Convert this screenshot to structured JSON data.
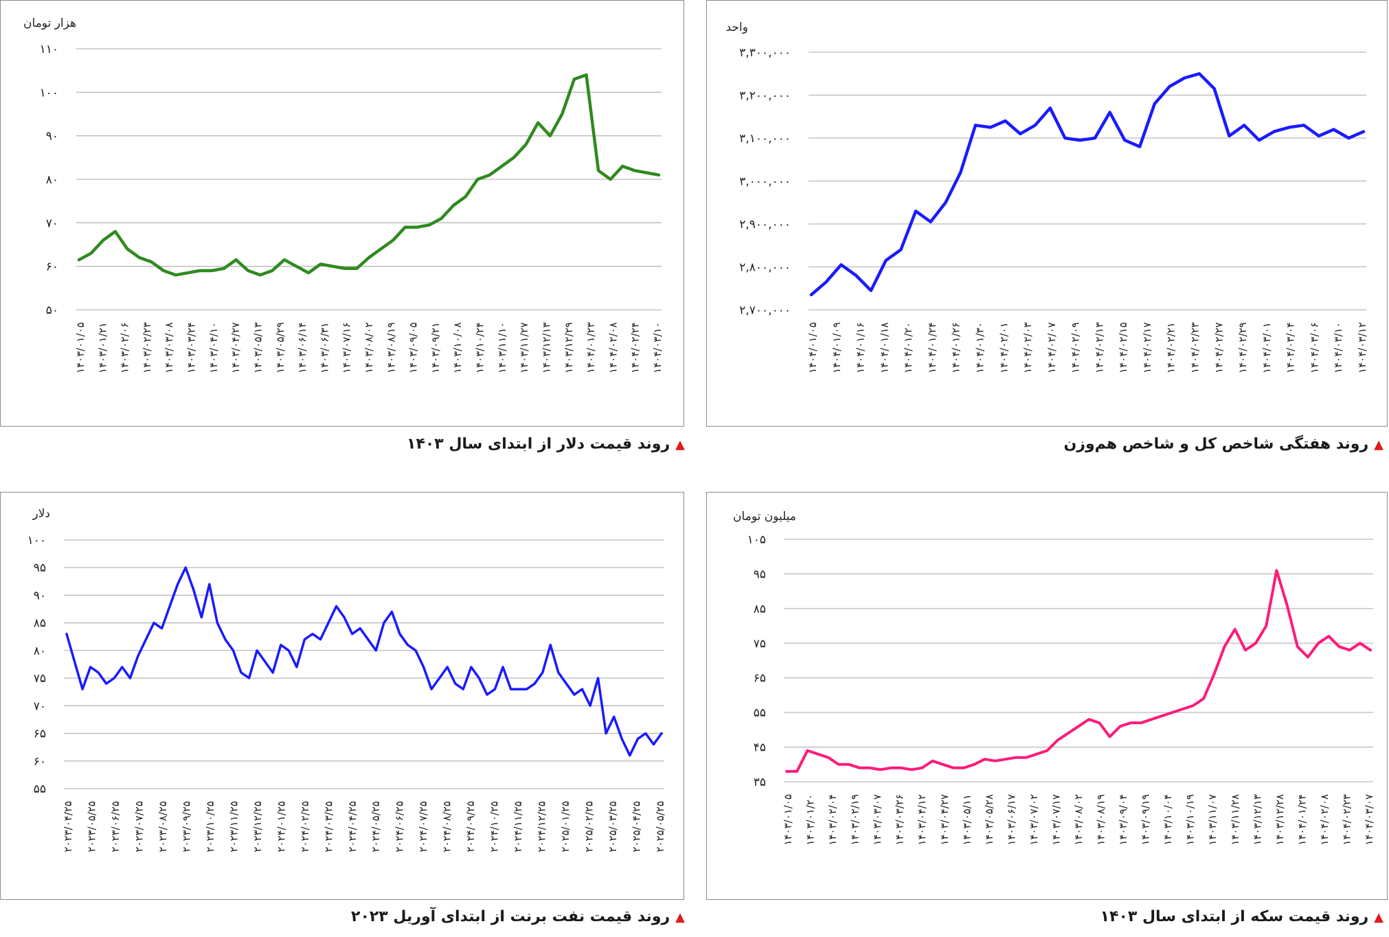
{
  "panels": {
    "index": {
      "caption": "روند هفتگی شاخص کل و شاخص هم‌وزن",
      "chart_data": {
        "type": "line",
        "ylabel": "واحد",
        "ylim": [
          2700000,
          3300000
        ],
        "yticks": [
          2700000,
          2800000,
          2900000,
          3000000,
          3100000,
          3200000,
          3300000
        ],
        "ytick_labels": [
          "۲,۷۰۰,۰۰۰",
          "۲,۸۰۰,۰۰۰",
          "۲,۹۰۰,۰۰۰",
          "۳,۰۰۰,۰۰۰",
          "۳,۱۰۰,۰۰۰",
          "۳,۲۰۰,۰۰۰",
          "۳,۳۰۰,۰۰۰"
        ],
        "x_tick_labels": [
          "۱۴۰۴/۰۱/۰۵",
          "۱۴۰۴/۰۱/۰۹",
          "۱۴۰۴/۰۱/۱۶",
          "۱۴۰۴/۰۱/۱۸",
          "۱۴۰۴/۰۱/۲۰",
          "۱۴۰۴/۰۱/۲۴",
          "۱۴۰۴/۰۱/۲۶",
          "۱۴۰۴/۰۱/۳۰",
          "۱۴۰۴/۰۲/۰۱",
          "۱۴۰۴/۰۲/۰۳",
          "۱۴۰۴/۰۲/۰۷",
          "۱۴۰۴/۰۲/۰۹",
          "۱۴۰۴/۰۲/۱۳",
          "۱۴۰۴/۰۲/۱۵",
          "۱۴۰۴/۰۲/۱۷",
          "۱۴۰۴/۰۲/۲۱",
          "۱۴۰۴/۰۲/۲۳",
          "۱۴۰۴/۰۲/۲۷",
          "۱۴۰۴/۰۲/۲۹",
          "۱۴۰۴/۰۳/۰۱",
          "۱۴۰۴/۰۳/۰۴",
          "۱۴۰۴/۰۳/۰۶",
          "۱۴۰۴/۰۳/۱۰",
          "۱۴۰۴/۰۳/۱۲"
        ],
        "series": [
          {
            "color": "#1a1aff",
            "values": [
              2735000,
              2765000,
              2805000,
              2780000,
              2745000,
              2815000,
              2840000,
              2930000,
              2905000,
              2950000,
              3020000,
              3130000,
              3125000,
              3140000,
              3110000,
              3130000,
              3170000,
              3100000,
              3095000,
              3100000,
              3160000,
              3095000,
              3080000,
              3180000,
              3220000,
              3240000,
              3250000,
              3215000,
              3105000,
              3130000,
              3095000,
              3115000,
              3125000,
              3130000,
              3105000,
              3120000,
              3100000,
              3115000
            ]
          }
        ]
      }
    },
    "dollar": {
      "caption": "روند قیمت دلار از ابتدای سال ۱۴۰۳",
      "chart_data": {
        "type": "line",
        "ylabel": "هزار تومان",
        "ylim": [
          50,
          110
        ],
        "yticks": [
          50,
          60,
          70,
          80,
          90,
          100,
          110
        ],
        "ytick_labels": [
          "۵۰",
          "۶۰",
          "۷۰",
          "۸۰",
          "۹۰",
          "۱۰۰",
          "۱۱۰"
        ],
        "x_tick_labels": [
          "۱۴۰۳/۰۱/۰۵",
          "۱۴۰۳/۰۱/۲۱",
          "۱۴۰۳/۰۲/۰۶",
          "۱۴۰۳/۰۲/۲۳",
          "۱۴۰۳/۰۳/۰۸",
          "۱۴۰۳/۰۳/۲۴",
          "۱۴۰۳/۰۴/۱۰",
          "۱۴۰۳/۰۴/۲۷",
          "۱۴۰۳/۰۵/۱۳",
          "۱۴۰۳/۰۵/۲۹",
          "۱۴۰۳/۰۶/۱۴",
          "۱۴۰۳/۰۶/۳۱",
          "۱۴۰۳/۰۷/۱۶",
          "۱۴۰۳/۰۸/۰۲",
          "۱۴۰۳/۰۸/۱۹",
          "۱۴۰۳/۰۹/۰۵",
          "۱۴۰۳/۰۹/۲۱",
          "۱۴۰۳/۱۰/۰۸",
          "۱۴۰۳/۱۰/۲۴",
          "۱۴۰۳/۱۱/۱۰",
          "۱۴۰۳/۱۱/۲۷",
          "۱۴۰۳/۱۲/۱۳",
          "۱۴۰۳/۱۲/۲۹",
          "۱۴۰۴/۰۱/۲۳",
          "۱۴۰۴/۰۲/۰۸",
          "۱۴۰۴/۰۲/۲۴",
          "۱۴۰۴/۰۳/۱۰"
        ],
        "series": [
          {
            "color": "#2e8a1e",
            "values": [
              61.5,
              63,
              66,
              68,
              64,
              62,
              61,
              59,
              58,
              58.5,
              59,
              59,
              59.5,
              61.5,
              59,
              58,
              59,
              61.5,
              60,
              58.5,
              60.5,
              60,
              59.5,
              59.5,
              62,
              64,
              66,
              69,
              69,
              69.5,
              71,
              74,
              76,
              80,
              81,
              83,
              85,
              88,
              93,
              90,
              95,
              103,
              104,
              82,
              80,
              83,
              82,
              81.5,
              81
            ]
          }
        ]
      }
    },
    "coin": {
      "caption": "روند قیمت سکه از ابتدای سال ۱۴۰۳",
      "chart_data": {
        "type": "line",
        "ylabel": "میلیون تومان",
        "ylim": [
          35,
          105
        ],
        "yticks": [
          35,
          45,
          55,
          65,
          75,
          85,
          95,
          105
        ],
        "ytick_labels": [
          "۳۵",
          "۴۵",
          "۵۵",
          "۶۵",
          "۷۵",
          "۸۵",
          "۹۵",
          "۱۰۵"
        ],
        "x_tick_labels": [
          "۱۴۰۳/۰۱/۰۵",
          "۱۴۰۳/۰۱/۲۰",
          "۱۴۰۳/۰۲/۰۴",
          "۱۴۰۳/۰۲/۱۹",
          "۱۴۰۳/۰۳/۰۷",
          "۱۴۰۳/۰۳/۲۶",
          "۱۴۰۳/۰۴/۱۲",
          "۱۴۰۳/۰۴/۲۷",
          "۱۴۰۳/۰۵/۱۱",
          "۱۴۰۳/۰۵/۲۸",
          "۱۴۰۳/۰۶/۱۷",
          "۱۴۰۳/۰۷/۰۲",
          "۱۴۰۳/۰۷/۱۷",
          "۱۴۰۳/۰۸/۰۲",
          "۱۴۰۳/۰۸/۱۹",
          "۱۴۰۳/۰۹/۰۴",
          "۱۴۰۳/۰۹/۱۹",
          "۱۴۰۳/۱۰/۰۴",
          "۱۴۰۳/۱۰/۱۹",
          "۱۴۰۳/۱۱/۰۷",
          "۱۴۰۳/۱۱/۲۸",
          "۱۴۰۳/۱۲/۱۳",
          "۱۴۰۳/۱۲/۲۸",
          "۱۴۰۴/۰۱/۲۴",
          "۱۴۰۴/۰۲/۰۸",
          "۱۴۰۴/۰۲/۲۳",
          "۱۴۰۴/۰۳/۰۷"
        ],
        "series": [
          {
            "color": "#ff1a7a",
            "values": [
              38,
              38,
              44,
              43,
              42,
              40,
              40,
              39,
              39,
              38.5,
              39,
              39,
              38.5,
              39,
              41,
              40,
              39,
              39,
              40,
              41.5,
              41,
              41.5,
              42,
              42,
              43,
              44,
              47,
              49,
              51,
              53,
              52,
              48,
              51,
              52,
              52,
              53,
              54,
              55,
              56,
              57,
              59,
              66,
              74,
              79,
              73,
              75,
              80,
              96,
              86,
              74,
              71,
              75,
              77,
              74,
              73,
              75,
              73
            ]
          }
        ]
      }
    },
    "brent": {
      "caption": "روند قیمت نفت برنت از ابتدای آوریل ۲۰۲۳",
      "chart_data": {
        "type": "line",
        "ylabel": "دلار",
        "ylim": [
          55,
          100
        ],
        "yticks": [
          55,
          60,
          65,
          70,
          75,
          80,
          85,
          90,
          95,
          100
        ],
        "ytick_labels": [
          "۵۵",
          "۶۰",
          "۶۵",
          "۷۰",
          "۷۵",
          "۸۰",
          "۸۵",
          "۹۰",
          "۹۵",
          "۱۰۰"
        ],
        "x_tick_labels": [
          "۲۰۲۳/۰۴/۲۵",
          "۲۰۲۳/۰۵/۲۵",
          "۲۰۲۳/۰۶/۲۵",
          "۲۰۲۳/۰۷/۲۵",
          "۲۰۲۳/۰۸/۲۵",
          "۲۰۲۳/۰۹/۲۵",
          "۲۰۲۳/۱۰/۲۵",
          "۲۰۲۳/۱۱/۲۵",
          "۲۰۲۳/۱۲/۲۵",
          "۲۰۲۴/۰۱/۲۵",
          "۲۰۲۴/۰۲/۲۵",
          "۲۰۲۴/۰۳/۲۵",
          "۲۰۲۴/۰۴/۲۵",
          "۲۰۲۴/۰۵/۲۵",
          "۲۰۲۴/۰۶/۲۵",
          "۲۰۲۴/۰۷/۲۵",
          "۲۰۲۴/۰۸/۲۵",
          "۲۰۲۴/۰۹/۲۵",
          "۲۰۲۴/۱۰/۲۵",
          "۲۰۲۴/۱۱/۲۵",
          "۲۰۲۴/۱۲/۲۵",
          "۲۰۲۵/۰۱/۲۵",
          "۲۰۲۵/۰۲/۲۵",
          "۲۰۲۵/۰۳/۲۵",
          "۲۰۲۵/۰۴/۲۵",
          "۲۰۲۵/۰۵/۲۵"
        ],
        "series": [
          {
            "color": "#1a1aff",
            "values": [
              83,
              78,
              73,
              77,
              76,
              74,
              75,
              77,
              75,
              79,
              82,
              85,
              84,
              88,
              92,
              95,
              91,
              86,
              92,
              85,
              82,
              80,
              76,
              75,
              80,
              78,
              76,
              81,
              80,
              77,
              82,
              83,
              82,
              85,
              88,
              86,
              83,
              84,
              82,
              80,
              85,
              87,
              83,
              81,
              80,
              77,
              73,
              75,
              77,
              74,
              73,
              77,
              75,
              72,
              73,
              77,
              73,
              73,
              73,
              74,
              76,
              81,
              76,
              74,
              72,
              73,
              70,
              75,
              65,
              68,
              64,
              61,
              64,
              65,
              63,
              65
            ]
          }
        ]
      }
    }
  }
}
